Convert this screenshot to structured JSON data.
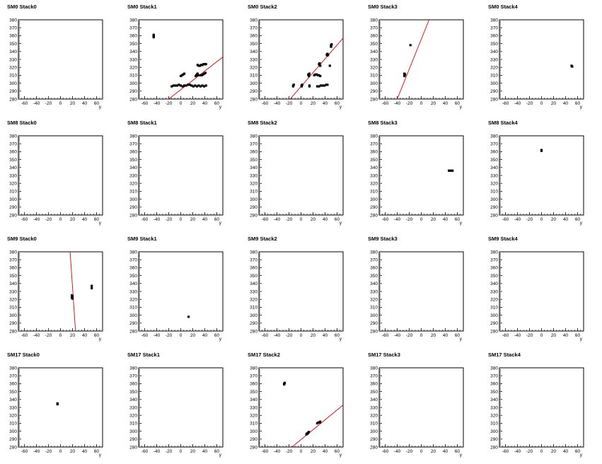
{
  "chart_data": [
    {
      "title": "SM0 Stack0",
      "type": "scatter",
      "xlim": [
        -70,
        70
      ],
      "ylim": [
        280,
        380
      ],
      "yticks": [
        "380",
        "370",
        "360",
        "350",
        "340",
        "330",
        "320",
        "310",
        "300",
        "290",
        "280"
      ],
      "xticks": [
        "-60",
        "-40",
        "-20",
        "0",
        "20",
        "40",
        "60"
      ],
      "xlabel": "y",
      "points": [],
      "fit": null
    },
    {
      "title": "SM0 Stack1",
      "type": "scatter",
      "xlim": [
        -70,
        70
      ],
      "ylim": [
        280,
        380
      ],
      "yticks": [
        "380",
        "370",
        "360",
        "350",
        "340",
        "330",
        "320",
        "310",
        "300",
        "290",
        "280"
      ],
      "xticks": [
        "-60",
        "-40",
        "-20",
        "0",
        "20",
        "40",
        "60"
      ],
      "xlabel": "y",
      "points": [
        [
          -45,
          361
        ],
        [
          -45,
          360
        ],
        [
          -45,
          359
        ],
        [
          -45,
          358
        ],
        [
          -15,
          296
        ],
        [
          -12,
          297
        ],
        [
          -9,
          297
        ],
        [
          -6,
          297
        ],
        [
          -3,
          298
        ],
        [
          0,
          297
        ],
        [
          3,
          296
        ],
        [
          6,
          297
        ],
        [
          9,
          297
        ],
        [
          12,
          298
        ],
        [
          15,
          298
        ],
        [
          18,
          297
        ],
        [
          21,
          296
        ],
        [
          24,
          297
        ],
        [
          27,
          296
        ],
        [
          30,
          297
        ],
        [
          33,
          296
        ],
        [
          36,
          297
        ],
        [
          39,
          296
        ],
        [
          42,
          297
        ],
        [
          0,
          309
        ],
        [
          2,
          310
        ],
        [
          4,
          311
        ],
        [
          6,
          312
        ],
        [
          25,
          309
        ],
        [
          26,
          310
        ],
        [
          27,
          311
        ],
        [
          28,
          312
        ],
        [
          29,
          310
        ],
        [
          28,
          323
        ],
        [
          30,
          322
        ],
        [
          32,
          322
        ],
        [
          34,
          323
        ],
        [
          36,
          323
        ],
        [
          38,
          324
        ],
        [
          40,
          324
        ],
        [
          42,
          324
        ],
        [
          33,
          310
        ],
        [
          35,
          310
        ],
        [
          37,
          311
        ],
        [
          39,
          312
        ],
        [
          41,
          313
        ]
      ],
      "fit": [
        [
          -20,
          280
        ],
        [
          70,
          333
        ]
      ]
    },
    {
      "title": "SM0 Stack2",
      "type": "scatter",
      "xlim": [
        -70,
        70
      ],
      "ylim": [
        280,
        380
      ],
      "yticks": [
        "380",
        "370",
        "360",
        "350",
        "340",
        "330",
        "320",
        "310",
        "300",
        "290",
        "280"
      ],
      "xticks": [
        "-60",
        "-40",
        "-20",
        "0",
        "20",
        "40",
        "60"
      ],
      "xlabel": "y",
      "points": [
        [
          -13,
          297
        ],
        [
          -13,
          296
        ],
        [
          -12,
          298
        ],
        [
          1,
          297
        ],
        [
          1,
          296
        ],
        [
          2,
          298
        ],
        [
          12,
          311
        ],
        [
          13,
          310
        ],
        [
          13,
          309
        ],
        [
          14,
          312
        ],
        [
          14,
          297
        ],
        [
          14,
          296
        ],
        [
          22,
          310
        ],
        [
          24,
          311
        ],
        [
          26,
          311
        ],
        [
          28,
          310
        ],
        [
          30,
          310
        ],
        [
          32,
          309
        ],
        [
          27,
          296
        ],
        [
          30,
          296
        ],
        [
          33,
          297
        ],
        [
          36,
          297
        ],
        [
          39,
          297
        ],
        [
          42,
          298
        ],
        [
          44,
          298
        ],
        [
          30,
          324
        ],
        [
          31,
          323
        ],
        [
          32,
          322
        ],
        [
          31,
          325
        ],
        [
          43,
          336
        ],
        [
          44,
          335
        ],
        [
          45,
          336
        ],
        [
          44,
          337
        ],
        [
          48,
          322
        ],
        [
          50,
          346
        ],
        [
          50,
          347
        ],
        [
          50,
          348
        ],
        [
          51,
          349
        ]
      ],
      "fit": [
        [
          -18,
          280
        ],
        [
          70,
          357
        ]
      ]
    },
    {
      "title": "SM0 Stack3",
      "type": "scatter",
      "xlim": [
        -70,
        70
      ],
      "ylim": [
        280,
        380
      ],
      "yticks": [
        "380",
        "370",
        "360",
        "350",
        "340",
        "330",
        "320",
        "310",
        "300",
        "290",
        "280"
      ],
      "xticks": [
        "-60",
        "-40",
        "-20",
        "0",
        "20",
        "40",
        "60"
      ],
      "xlabel": "y",
      "points": [
        [
          -18,
          348
        ],
        [
          -28,
          309
        ],
        [
          -28,
          310
        ],
        [
          -27,
          311
        ],
        [
          -28,
          312
        ]
      ],
      "fit": [
        [
          -40,
          280
        ],
        [
          13,
          380
        ]
      ]
    },
    {
      "title": "SM0 Stack4",
      "type": "scatter",
      "xlim": [
        -70,
        70
      ],
      "ylim": [
        280,
        380
      ],
      "yticks": [
        "380",
        "370",
        "360",
        "350",
        "340",
        "330",
        "320",
        "310",
        "300",
        "290",
        "280"
      ],
      "xticks": [
        "-60",
        "-40",
        "-20",
        "0",
        "20",
        "40",
        "60"
      ],
      "xlabel": "y",
      "points": [
        [
          50,
          322
        ],
        [
          51,
          321
        ]
      ],
      "fit": null
    },
    {
      "title": "SM8 Stack0",
      "type": "scatter",
      "xlim": [
        -70,
        70
      ],
      "ylim": [
        280,
        380
      ],
      "yticks": [
        "380",
        "370",
        "360",
        "350",
        "340",
        "330",
        "320",
        "310",
        "300",
        "290",
        "280"
      ],
      "xticks": [
        "-60",
        "-40",
        "-20",
        "0",
        "20",
        "40",
        "60"
      ],
      "xlabel": "y",
      "points": [],
      "fit": null
    },
    {
      "title": "SM8 Stack1",
      "type": "scatter",
      "xlim": [
        -70,
        70
      ],
      "ylim": [
        280,
        380
      ],
      "yticks": [
        "380",
        "370",
        "360",
        "350",
        "340",
        "330",
        "320",
        "310",
        "300",
        "290",
        "280"
      ],
      "xticks": [
        "-60",
        "-40",
        "-20",
        "0",
        "20",
        "40",
        "60"
      ],
      "xlabel": "y",
      "points": [],
      "fit": null
    },
    {
      "title": "SM8 Stack2",
      "type": "scatter",
      "xlim": [
        -70,
        70
      ],
      "ylim": [
        280,
        380
      ],
      "yticks": [
        "380",
        "370",
        "360",
        "350",
        "340",
        "330",
        "320",
        "310",
        "300",
        "290",
        "280"
      ],
      "xticks": [
        "-60",
        "-40",
        "-20",
        "0",
        "20",
        "40",
        "60"
      ],
      "xlabel": "y",
      "points": [],
      "fit": null
    },
    {
      "title": "SM8 Stack3",
      "type": "scatter",
      "xlim": [
        -70,
        70
      ],
      "ylim": [
        280,
        380
      ],
      "yticks": [
        "380",
        "370",
        "360",
        "350",
        "340",
        "330",
        "320",
        "310",
        "300",
        "290",
        "280"
      ],
      "xticks": [
        "-60",
        "-40",
        "-20",
        "0",
        "20",
        "40",
        "60"
      ],
      "xlabel": "y",
      "points": [
        [
          46,
          336
        ],
        [
          49,
          336
        ],
        [
          52,
          336
        ]
      ],
      "fit": null
    },
    {
      "title": "SM8 Stack4",
      "type": "scatter",
      "xlim": [
        -70,
        70
      ],
      "ylim": [
        280,
        380
      ],
      "yticks": [
        "380",
        "370",
        "360",
        "350",
        "340",
        "330",
        "320",
        "310",
        "300",
        "290",
        "280"
      ],
      "xticks": [
        "-60",
        "-40",
        "-20",
        "0",
        "20",
        "40",
        "60"
      ],
      "xlabel": "y",
      "points": [
        [
          0,
          361
        ],
        [
          0,
          362
        ]
      ],
      "fit": null
    },
    {
      "title": "SM9 Stack0",
      "type": "scatter",
      "xlim": [
        -70,
        70
      ],
      "ylim": [
        280,
        380
      ],
      "yticks": [
        "380",
        "370",
        "360",
        "350",
        "340",
        "330",
        "320",
        "310",
        "300",
        "290",
        "280"
      ],
      "xticks": [
        "-60",
        "-40",
        "-20",
        "0",
        "20",
        "40",
        "60"
      ],
      "xlabel": "y",
      "points": [
        [
          19,
          322
        ],
        [
          19,
          323
        ],
        [
          20,
          324
        ],
        [
          19,
          325
        ],
        [
          20,
          321
        ],
        [
          52,
          337
        ],
        [
          52,
          334
        ]
      ],
      "fit": [
        [
          16,
          380
        ],
        [
          25,
          280
        ]
      ]
    },
    {
      "title": "SM9 Stack1",
      "type": "scatter",
      "xlim": [
        -70,
        70
      ],
      "ylim": [
        280,
        380
      ],
      "yticks": [
        "380",
        "370",
        "360",
        "350",
        "340",
        "330",
        "320",
        "310",
        "300",
        "290",
        "280"
      ],
      "xticks": [
        "-60",
        "-40",
        "-20",
        "0",
        "20",
        "40",
        "60"
      ],
      "xlabel": "y",
      "points": [
        [
          13,
          298
        ]
      ],
      "fit": null
    },
    {
      "title": "SM9 Stack2",
      "type": "scatter",
      "xlim": [
        -70,
        70
      ],
      "ylim": [
        280,
        380
      ],
      "yticks": [
        "380",
        "370",
        "360",
        "350",
        "340",
        "330",
        "320",
        "310",
        "300",
        "290",
        "280"
      ],
      "xticks": [
        "-60",
        "-40",
        "-20",
        "0",
        "20",
        "40",
        "60"
      ],
      "xlabel": "y",
      "points": [],
      "fit": null
    },
    {
      "title": "SM9 Stack3",
      "type": "scatter",
      "xlim": [
        -70,
        70
      ],
      "ylim": [
        280,
        380
      ],
      "yticks": [
        "380",
        "370",
        "360",
        "350",
        "340",
        "330",
        "320",
        "310",
        "300",
        "290",
        "280"
      ],
      "xticks": [
        "-60",
        "-40",
        "-20",
        "0",
        "20",
        "40",
        "60"
      ],
      "xlabel": "y",
      "points": [],
      "fit": null
    },
    {
      "title": "SM9 Stack4",
      "type": "scatter",
      "xlim": [
        -70,
        70
      ],
      "ylim": [
        280,
        380
      ],
      "yticks": [
        "380",
        "370",
        "360",
        "350",
        "340",
        "330",
        "320",
        "310",
        "300",
        "290",
        "280"
      ],
      "xticks": [
        "-60",
        "-40",
        "-20",
        "0",
        "20",
        "40",
        "60"
      ],
      "xlabel": "y",
      "points": [],
      "fit": null
    },
    {
      "title": "SM17 Stack0",
      "type": "scatter",
      "xlim": [
        -70,
        70
      ],
      "ylim": [
        280,
        380
      ],
      "yticks": [
        "380",
        "370",
        "360",
        "350",
        "340",
        "330",
        "320",
        "310",
        "300",
        "290",
        "280"
      ],
      "xticks": [
        "-60",
        "-40",
        "-20",
        "0",
        "20",
        "40",
        "60"
      ],
      "xlabel": "y",
      "points": [
        [
          -5,
          334
        ],
        [
          -5,
          335
        ]
      ],
      "fit": null
    },
    {
      "title": "SM17 Stack1",
      "type": "scatter",
      "xlim": [
        -70,
        70
      ],
      "ylim": [
        280,
        380
      ],
      "yticks": [
        "380",
        "370",
        "360",
        "350",
        "340",
        "330",
        "320",
        "310",
        "300",
        "290",
        "280"
      ],
      "xticks": [
        "-60",
        "-40",
        "-20",
        "0",
        "20",
        "40",
        "60"
      ],
      "xlabel": "y",
      "points": [],
      "fit": null
    },
    {
      "title": "SM17 Stack2",
      "type": "scatter",
      "xlim": [
        -70,
        70
      ],
      "ylim": [
        280,
        380
      ],
      "yticks": [
        "380",
        "370",
        "360",
        "350",
        "340",
        "330",
        "320",
        "310",
        "300",
        "290",
        "280"
      ],
      "xticks": [
        "-60",
        "-40",
        "-20",
        "0",
        "20",
        "40",
        "60"
      ],
      "xlabel": "y",
      "points": [
        [
          -28,
          359
        ],
        [
          -28,
          360
        ],
        [
          -27,
          361
        ],
        [
          9,
          296
        ],
        [
          10,
          297
        ],
        [
          11,
          297
        ],
        [
          12,
          298
        ],
        [
          13,
          299
        ],
        [
          27,
          310
        ],
        [
          29,
          311
        ],
        [
          31,
          311
        ],
        [
          32,
          312
        ]
      ],
      "fit": [
        [
          -15,
          280
        ],
        [
          70,
          333
        ]
      ]
    },
    {
      "title": "SM17 Stack3",
      "type": "scatter",
      "xlim": [
        -70,
        70
      ],
      "ylim": [
        280,
        380
      ],
      "yticks": [
        "380",
        "370",
        "360",
        "350",
        "340",
        "330",
        "320",
        "310",
        "300",
        "290",
        "280"
      ],
      "xticks": [
        "-60",
        "-40",
        "-20",
        "0",
        "20",
        "40",
        "60"
      ],
      "xlabel": "y",
      "points": [],
      "fit": null
    },
    {
      "title": "SM17 Stack4",
      "type": "scatter",
      "xlim": [
        -70,
        70
      ],
      "ylim": [
        280,
        380
      ],
      "yticks": [
        "380",
        "370",
        "360",
        "350",
        "340",
        "330",
        "320",
        "310",
        "300",
        "290",
        "280"
      ],
      "xticks": [
        "-60",
        "-40",
        "-20",
        "0",
        "20",
        "40",
        "60"
      ],
      "xlabel": "y",
      "points": [],
      "fit": null
    }
  ],
  "colors": {
    "fit_line": "#e00000",
    "marker": "#000000",
    "axis": "#000000",
    "background": "#ffffff"
  }
}
